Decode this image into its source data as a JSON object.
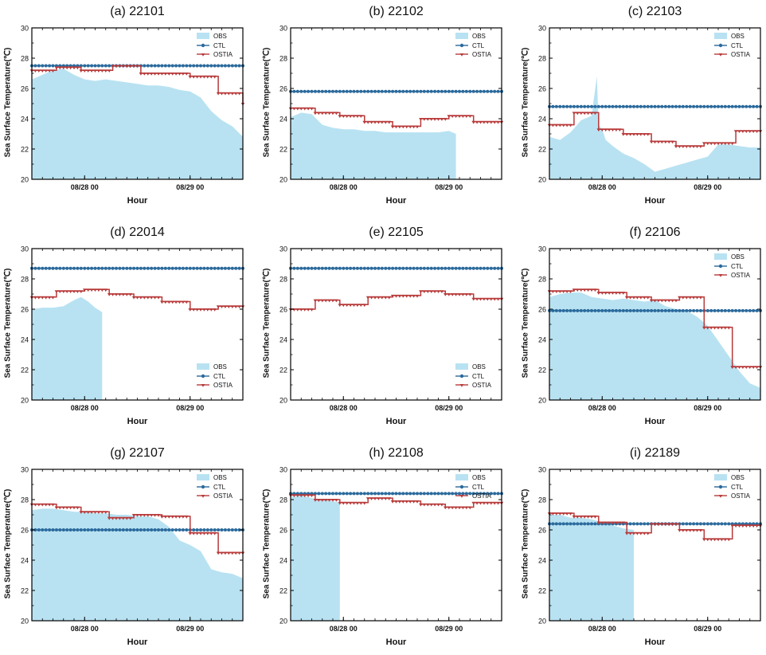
{
  "colors": {
    "obs_fill": "#b8e2f2",
    "ctl": "#2b6a9c",
    "ostia": "#b83a3a",
    "axis": "#000000"
  },
  "shared": {
    "ylabel": "Sea Surface Temperature(℃)",
    "xlabel": "Hour",
    "xtick_labels": [
      "08/28 00",
      "08/29 00"
    ],
    "legend": [
      "OBS",
      "CTL",
      "OSTIA"
    ]
  },
  "chart_data": [
    {
      "title": "(a) 22101",
      "type": "area+line",
      "legend_position": "top-right",
      "ylim": [
        20,
        30
      ],
      "yticks": [
        20,
        22,
        24,
        26,
        28,
        30
      ],
      "x_range_hours": [
        0,
        60
      ],
      "xticks_hours": [
        15,
        45
      ],
      "series": [
        {
          "name": "OBS",
          "x": [
            0,
            3,
            6,
            9,
            12,
            15,
            18,
            21,
            24,
            27,
            30,
            33,
            36,
            39,
            42,
            45,
            48,
            51,
            54,
            57,
            60
          ],
          "values": [
            26.6,
            26.9,
            27.2,
            27.3,
            26.9,
            26.6,
            26.5,
            26.6,
            26.5,
            26.4,
            26.3,
            26.2,
            26.2,
            26.1,
            25.9,
            25.8,
            25.4,
            24.5,
            23.9,
            23.5,
            22.8
          ]
        },
        {
          "name": "CTL",
          "constant": 27.5
        },
        {
          "name": "OSTIA",
          "step_x": [
            0,
            7,
            14,
            23,
            31,
            45,
            53,
            60
          ],
          "step_values": [
            27.2,
            27.4,
            27.2,
            27.5,
            27.0,
            26.8,
            25.7,
            25.0
          ]
        }
      ]
    },
    {
      "title": "(b) 22102",
      "type": "area+line",
      "legend_position": "top-right",
      "ylim": [
        20,
        30
      ],
      "yticks": [
        20,
        22,
        24,
        26,
        28,
        30
      ],
      "x_range_hours": [
        0,
        60
      ],
      "xticks_hours": [
        15,
        45
      ],
      "series": [
        {
          "name": "OBS",
          "x": [
            0,
            3,
            6,
            9,
            12,
            15,
            18,
            21,
            24,
            27,
            30,
            33,
            36,
            39,
            42,
            45,
            47
          ],
          "values": [
            24.1,
            24.4,
            24.3,
            23.6,
            23.4,
            23.3,
            23.3,
            23.2,
            23.2,
            23.1,
            23.1,
            23.1,
            23.1,
            23.1,
            23.1,
            23.2,
            23.0
          ]
        },
        {
          "name": "CTL",
          "constant": 25.8
        },
        {
          "name": "OSTIA",
          "step_x": [
            0,
            7,
            14,
            21,
            29,
            37,
            45,
            52,
            60
          ],
          "step_values": [
            24.7,
            24.4,
            24.2,
            23.8,
            23.5,
            24.0,
            24.2,
            23.8,
            23.8
          ]
        }
      ]
    },
    {
      "title": "(c) 22103",
      "type": "area+line",
      "legend_position": "top-right",
      "ylim": [
        20,
        30
      ],
      "yticks": [
        20,
        22,
        24,
        26,
        28,
        30
      ],
      "x_range_hours": [
        0,
        60
      ],
      "xticks_hours": [
        15,
        45
      ],
      "series": [
        {
          "name": "OBS",
          "x": [
            0,
            3,
            6,
            9,
            12,
            13.5,
            14,
            15,
            16,
            18,
            21,
            24,
            27,
            30,
            33,
            36,
            39,
            42,
            45,
            48,
            51,
            54,
            57,
            60
          ],
          "values": [
            22.8,
            22.6,
            23.1,
            23.9,
            24.2,
            26.8,
            23.6,
            23.3,
            22.6,
            22.2,
            21.7,
            21.4,
            21.0,
            20.5,
            20.7,
            20.9,
            21.1,
            21.3,
            21.5,
            22.3,
            22.3,
            22.2,
            22.1,
            22.1
          ]
        },
        {
          "name": "CTL",
          "constant": 24.8
        },
        {
          "name": "OSTIA",
          "step_x": [
            0,
            7,
            14,
            21,
            29,
            36,
            44,
            53,
            60
          ],
          "step_values": [
            23.6,
            24.4,
            23.3,
            23.0,
            22.5,
            22.2,
            22.4,
            23.2,
            23.2
          ]
        }
      ]
    },
    {
      "title": "(d) 22014",
      "type": "area+line",
      "legend_position": "bottom-right",
      "ylim": [
        20,
        30
      ],
      "yticks": [
        20,
        22,
        24,
        26,
        28,
        30
      ],
      "x_range_hours": [
        0,
        60
      ],
      "xticks_hours": [
        15,
        45
      ],
      "series": [
        {
          "name": "OBS",
          "x": [
            0,
            3,
            6,
            9,
            12,
            14,
            16,
            18,
            20
          ],
          "values": [
            26.0,
            26.1,
            26.1,
            26.2,
            26.6,
            26.8,
            26.5,
            26.1,
            25.8
          ]
        },
        {
          "name": "CTL",
          "constant": 28.7
        },
        {
          "name": "OSTIA",
          "step_x": [
            0,
            7,
            15,
            22,
            29,
            37,
            45,
            53,
            60
          ],
          "step_values": [
            26.8,
            27.2,
            27.3,
            27.0,
            26.8,
            26.5,
            26.0,
            26.2,
            26.2
          ]
        }
      ]
    },
    {
      "title": "(e) 22105",
      "type": "area+line",
      "legend_position": "bottom-right",
      "ylim": [
        20,
        30
      ],
      "yticks": [
        20,
        22,
        24,
        26,
        28,
        30
      ],
      "x_range_hours": [
        0,
        60
      ],
      "xticks_hours": [
        15,
        45
      ],
      "series": [
        {
          "name": "OBS",
          "x": [],
          "values": []
        },
        {
          "name": "CTL",
          "constant": 28.7
        },
        {
          "name": "OSTIA",
          "step_x": [
            0,
            7,
            14,
            22,
            29,
            37,
            44,
            52,
            60
          ],
          "step_values": [
            26.0,
            26.6,
            26.3,
            26.8,
            26.9,
            27.2,
            27.0,
            26.7,
            26.7
          ]
        }
      ]
    },
    {
      "title": "(f) 22106",
      "type": "area+line",
      "legend_position": "top-right",
      "ylim": [
        20,
        30
      ],
      "yticks": [
        20,
        22,
        24,
        26,
        28,
        30
      ],
      "x_range_hours": [
        0,
        60
      ],
      "xticks_hours": [
        15,
        45
      ],
      "series": [
        {
          "name": "OBS",
          "x": [
            0,
            3,
            6,
            9,
            12,
            15,
            18,
            21,
            24,
            27,
            30,
            33,
            36,
            39,
            42,
            45,
            48,
            51,
            54,
            57,
            60
          ],
          "values": [
            26.8,
            27.0,
            27.1,
            27.1,
            26.8,
            26.7,
            26.6,
            26.7,
            26.6,
            26.5,
            26.6,
            26.2,
            26.0,
            25.9,
            25.5,
            24.9,
            23.9,
            22.9,
            21.9,
            21.1,
            20.8
          ]
        },
        {
          "name": "CTL",
          "constant": 25.9
        },
        {
          "name": "OSTIA",
          "step_x": [
            0,
            7,
            14,
            22,
            29,
            37,
            44,
            52,
            60
          ],
          "step_values": [
            27.2,
            27.3,
            27.1,
            26.8,
            26.6,
            26.8,
            24.8,
            22.2,
            22.2
          ]
        }
      ]
    },
    {
      "title": "(g) 22107",
      "type": "area+line",
      "legend_position": "top-right",
      "ylim": [
        20,
        30
      ],
      "yticks": [
        20,
        22,
        24,
        26,
        28,
        30
      ],
      "x_range_hours": [
        0,
        60
      ],
      "xticks_hours": [
        15,
        45
      ],
      "series": [
        {
          "name": "OBS",
          "x": [
            0,
            3,
            6,
            9,
            12,
            15,
            18,
            21,
            24,
            27,
            30,
            33,
            36,
            39,
            42,
            45,
            48,
            51,
            54,
            57,
            60
          ],
          "values": [
            27.3,
            27.4,
            27.4,
            27.3,
            27.2,
            27.2,
            27.1,
            27.1,
            27.0,
            27.0,
            26.9,
            26.9,
            26.7,
            26.2,
            25.3,
            25.0,
            24.6,
            23.4,
            23.2,
            23.1,
            22.8
          ]
        },
        {
          "name": "CTL",
          "constant": 26.0
        },
        {
          "name": "OSTIA",
          "step_x": [
            0,
            7,
            14,
            22,
            29,
            37,
            45,
            53,
            60
          ],
          "step_values": [
            27.7,
            27.5,
            27.2,
            26.8,
            27.0,
            26.9,
            25.8,
            24.5,
            24.5
          ]
        }
      ]
    },
    {
      "title": "(h) 22108",
      "type": "area+line",
      "legend_position": "top-right",
      "ylim": [
        20,
        30
      ],
      "yticks": [
        20,
        22,
        24,
        26,
        28,
        30
      ],
      "x_range_hours": [
        0,
        60
      ],
      "xticks_hours": [
        15,
        45
      ],
      "series": [
        {
          "name": "OBS",
          "x": [
            0,
            3,
            6,
            9,
            12,
            14
          ],
          "values": [
            28.2,
            28.3,
            28.1,
            28.0,
            27.9,
            27.8
          ]
        },
        {
          "name": "CTL",
          "constant": 28.4
        },
        {
          "name": "OSTIA",
          "step_x": [
            0,
            7,
            14,
            22,
            29,
            37,
            44,
            52,
            60
          ],
          "step_values": [
            28.3,
            28.0,
            27.8,
            28.1,
            27.9,
            27.7,
            27.5,
            27.8,
            27.8
          ]
        }
      ]
    },
    {
      "title": "(i) 22189",
      "type": "area+line",
      "legend_position": "top-right",
      "ylim": [
        20,
        30
      ],
      "yticks": [
        20,
        22,
        24,
        26,
        28,
        30
      ],
      "x_range_hours": [
        0,
        60
      ],
      "xticks_hours": [
        15,
        45
      ],
      "series": [
        {
          "name": "OBS",
          "x": [
            0,
            3,
            6,
            9,
            12,
            15,
            18,
            21,
            24
          ],
          "values": [
            27.0,
            27.0,
            26.8,
            26.8,
            26.7,
            26.5,
            26.3,
            26.1,
            26.0
          ]
        },
        {
          "name": "CTL",
          "constant": 26.4
        },
        {
          "name": "OSTIA",
          "step_x": [
            0,
            7,
            14,
            22,
            29,
            37,
            44,
            52,
            60
          ],
          "step_values": [
            27.1,
            26.9,
            26.5,
            25.8,
            26.4,
            26.0,
            25.4,
            26.3,
            26.3
          ]
        }
      ]
    }
  ]
}
